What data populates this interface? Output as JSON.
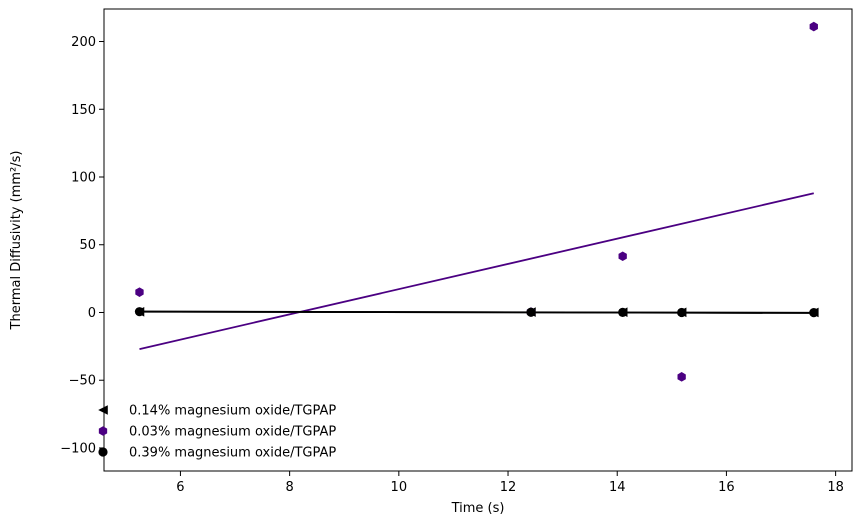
{
  "chart_data": {
    "type": "scatter",
    "xlabel": "Time (s)",
    "ylabel": "Thermal Diffusivity (mm²/s)",
    "xlim": [
      4.6,
      18.3
    ],
    "ylim": [
      -117,
      224
    ],
    "xticks": [
      6,
      8,
      10,
      12,
      14,
      16,
      18
    ],
    "yticks": [
      -100,
      -50,
      0,
      50,
      100,
      150,
      200
    ],
    "xtick_labels": [
      "6",
      "8",
      "10",
      "12",
      "14",
      "16",
      "18"
    ],
    "ytick_labels": [
      "−100",
      "−50",
      "0",
      "50",
      "100",
      "150",
      "200"
    ],
    "grid": false,
    "legend_position": "lower-left",
    "series": [
      {
        "name": "0.14% magnesium oxide/TGPAP",
        "marker": "triangle-left",
        "color": "#000000",
        "x": [
          5.25,
          12.42,
          14.1,
          15.18,
          17.6
        ],
        "y": [
          0.5,
          0.3,
          0.2,
          0.1,
          0.0
        ],
        "fit": {
          "x": [
            5.25,
            17.6
          ],
          "y": [
            0.6,
            -0.2
          ]
        }
      },
      {
        "name": "0.03% magnesium oxide/TGPAP",
        "marker": "hexagon",
        "color": "#4b0082",
        "x": [
          5.25,
          12.42,
          14.1,
          15.18,
          17.6
        ],
        "y": [
          15,
          0.3,
          41.5,
          -47.5,
          211
        ],
        "fit": {
          "x": [
            5.25,
            17.6
          ],
          "y": [
            -27,
            88
          ]
        }
      },
      {
        "name": "0.39% magnesium oxide/TGPAP",
        "marker": "circle",
        "color": "#000000",
        "x": [
          5.25,
          12.42,
          14.1,
          15.18,
          17.6
        ],
        "y": [
          0.6,
          0.2,
          0.1,
          0.0,
          -0.1
        ],
        "fit": {
          "x": [
            5.25,
            17.6
          ],
          "y": [
            0.7,
            -0.4
          ]
        }
      }
    ]
  }
}
